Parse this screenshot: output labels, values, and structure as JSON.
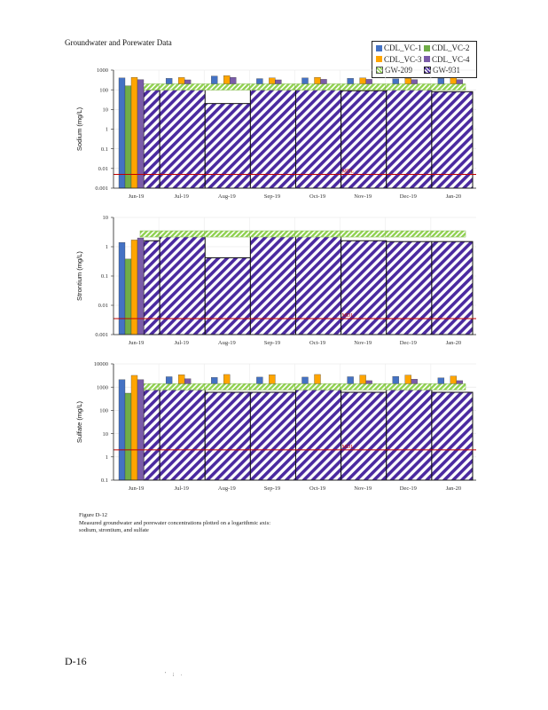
{
  "page": {
    "title": "Groundwater and Porewater Data",
    "caption_lines": [
      "Figure D-12",
      "Measured groundwater and porewater concentrations plotted on a logarithmic axis:",
      "sodium, strontium, and sulfate"
    ],
    "page_number": "D-16",
    "footer_marks": "' ; ."
  },
  "colors": {
    "CDL_VC-1": "#4472c4",
    "CDL_VC-2": "#70ad47",
    "CDL_VC-3": "#ffa500",
    "CDL_VC-4": "#7a5ba8",
    "GW-209": "#8fd14f",
    "GW-931": "#4b2aa0",
    "threshold": "#c00000"
  },
  "legend": [
    {
      "name": "CDL_VC-1",
      "style": "solid"
    },
    {
      "name": "CDL_VC-2",
      "style": "solid"
    },
    {
      "name": "CDL_VC-3",
      "style": "solid"
    },
    {
      "name": "CDL_VC-4",
      "style": "solid"
    },
    {
      "name": "GW-209",
      "style": "hatch-light"
    },
    {
      "name": "GW-931",
      "style": "hatch-dark"
    }
  ],
  "chart_data": [
    {
      "type": "bar",
      "scale": "log",
      "ylabel": "Sodium (mg/L)",
      "ylim": [
        0.001,
        1000
      ],
      "yticks": [
        "0.001",
        "0.01",
        "0.1",
        "1",
        "10",
        "100",
        "1000"
      ],
      "categories": [
        "Jun-19",
        "Jul-19",
        "Aug-19",
        "Sep-19",
        "Oct-19",
        "Nov-19",
        "Dec-19",
        "Jan-20"
      ],
      "series": [
        {
          "name": "CDL_VC-1",
          "values": [
            400,
            380,
            500,
            370,
            400,
            380,
            360,
            380
          ]
        },
        {
          "name": "CDL_VC-2",
          "values": [
            160,
            null,
            null,
            null,
            null,
            null,
            null,
            null
          ]
        },
        {
          "name": "CDL_VC-3",
          "values": [
            430,
            420,
            520,
            400,
            430,
            400,
            380,
            400
          ]
        },
        {
          "name": "CDL_VC-4",
          "values": [
            330,
            320,
            430,
            320,
            340,
            340,
            330,
            330
          ]
        },
        {
          "name": "GW-209",
          "values": [
            200,
            200,
            200,
            200,
            200,
            200,
            200,
            200
          ]
        },
        {
          "name": "GW-931",
          "values": [
            100,
            170,
            20,
            130,
            150,
            90,
            150,
            80
          ]
        }
      ],
      "threshold": {
        "value": 0.005,
        "label": "MDL"
      }
    },
    {
      "type": "bar",
      "scale": "log",
      "ylabel": "Strontium (mg/L)",
      "ylim": [
        0.001,
        10
      ],
      "yticks": [
        "0.001",
        "0.01",
        "0.1",
        "1",
        "10"
      ],
      "categories": [
        "Jun-19",
        "Jul-19",
        "Aug-19",
        "Sep-19",
        "Oct-19",
        "Nov-19",
        "Dec-19",
        "Jan-20"
      ],
      "series": [
        {
          "name": "CDL_VC-1",
          "values": [
            1.4,
            null,
            null,
            null,
            null,
            null,
            null,
            null
          ]
        },
        {
          "name": "CDL_VC-2",
          "values": [
            0.38,
            null,
            null,
            null,
            null,
            null,
            null,
            null
          ]
        },
        {
          "name": "CDL_VC-3",
          "values": [
            1.7,
            null,
            null,
            null,
            null,
            null,
            null,
            null
          ]
        },
        {
          "name": "CDL_VC-4",
          "values": [
            2.0,
            null,
            null,
            null,
            null,
            null,
            null,
            null
          ]
        },
        {
          "name": "GW-209",
          "values": [
            3.5,
            3.5,
            3.5,
            3.5,
            3.5,
            3.5,
            3.5,
            3.5
          ]
        },
        {
          "name": "GW-931",
          "values": [
            1.6,
            2.4,
            0.42,
            2.6,
            2.3,
            1.6,
            1.5,
            1.5
          ]
        }
      ],
      "threshold": {
        "value": 0.0035,
        "label": "MDL"
      }
    },
    {
      "type": "bar",
      "scale": "log",
      "ylabel": "Sulfate (mg/L)",
      "ylim": [
        0.1,
        10000
      ],
      "yticks": [
        "0.1",
        "1",
        "10",
        "100",
        "1000",
        "10000"
      ],
      "categories": [
        "Jun-19",
        "Jul-19",
        "Aug-19",
        "Sep-19",
        "Oct-19",
        "Nov-19",
        "Dec-19",
        "Jan-20"
      ],
      "series": [
        {
          "name": "CDL_VC-1",
          "values": [
            2100,
            2800,
            2600,
            2700,
            2700,
            2800,
            2900,
            2500
          ]
        },
        {
          "name": "CDL_VC-2",
          "values": [
            550,
            null,
            null,
            null,
            null,
            null,
            null,
            null
          ]
        },
        {
          "name": "CDL_VC-3",
          "values": [
            3200,
            3400,
            3500,
            3400,
            3500,
            3300,
            3300,
            3000
          ]
        },
        {
          "name": "CDL_VC-4",
          "values": [
            2100,
            2300,
            1200,
            1200,
            1200,
            1900,
            2200,
            1900
          ]
        },
        {
          "name": "GW-209",
          "values": [
            1400,
            1400,
            1400,
            1400,
            1400,
            1400,
            1400,
            1400
          ]
        },
        {
          "name": "GW-931",
          "values": [
            900,
            1100,
            600,
            600,
            1200,
            600,
            1300,
            600
          ]
        }
      ],
      "threshold": {
        "value": 2,
        "label": "MDL"
      }
    }
  ]
}
